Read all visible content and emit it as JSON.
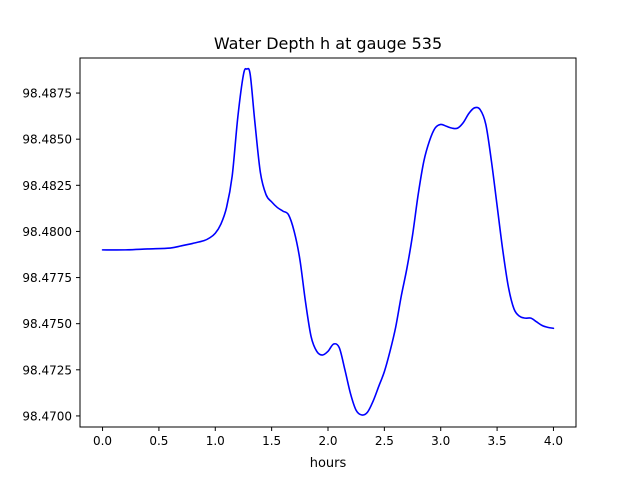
{
  "chart_data": {
    "type": "line",
    "title": "Water Depth h at gauge 535",
    "xlabel": "hours",
    "ylabel": "",
    "xlim": [
      -0.2,
      4.2
    ],
    "ylim": [
      98.4694,
      98.4894
    ],
    "xticks": [
      0.0,
      0.5,
      1.0,
      1.5,
      2.0,
      2.5,
      3.0,
      3.5,
      4.0
    ],
    "xtick_labels": [
      "0.0",
      "0.5",
      "1.0",
      "1.5",
      "2.0",
      "2.5",
      "3.0",
      "3.5",
      "4.0"
    ],
    "yticks": [
      98.47,
      98.4725,
      98.475,
      98.4775,
      98.48,
      98.4825,
      98.485,
      98.4875
    ],
    "ytick_labels": [
      "98.4700",
      "98.4725",
      "98.4750",
      "98.4775",
      "98.4800",
      "98.4825",
      "98.4850",
      "98.4875"
    ],
    "grid": false,
    "series": [
      {
        "color": "#0000ff",
        "x": [
          0.0,
          0.2,
          0.4,
          0.6,
          0.7,
          0.8,
          0.9,
          0.95,
          1.0,
          1.05,
          1.1,
          1.15,
          1.2,
          1.25,
          1.28,
          1.31,
          1.35,
          1.4,
          1.45,
          1.5,
          1.55,
          1.6,
          1.65,
          1.7,
          1.75,
          1.8,
          1.85,
          1.9,
          1.95,
          2.0,
          2.05,
          2.1,
          2.15,
          2.2,
          2.25,
          2.3,
          2.35,
          2.4,
          2.45,
          2.5,
          2.55,
          2.6,
          2.65,
          2.7,
          2.75,
          2.8,
          2.85,
          2.9,
          2.95,
          3.0,
          3.05,
          3.1,
          3.15,
          3.2,
          3.25,
          3.3,
          3.35,
          3.4,
          3.45,
          3.5,
          3.55,
          3.6,
          3.65,
          3.7,
          3.75,
          3.8,
          3.85,
          3.9,
          3.95,
          4.0
        ],
        "y": [
          98.479,
          98.479,
          98.47905,
          98.4791,
          98.47922,
          98.47935,
          98.4795,
          98.47965,
          98.4799,
          98.4804,
          98.4813,
          98.483,
          98.4862,
          98.4885,
          98.4888,
          98.4885,
          98.486,
          98.4832,
          98.482,
          98.4816,
          98.4813,
          98.4811,
          98.4809,
          98.48,
          98.4785,
          98.4762,
          98.4743,
          98.4735,
          98.4733,
          98.4735,
          98.4739,
          98.4737,
          98.4725,
          98.4712,
          98.4703,
          98.47005,
          98.4702,
          98.4708,
          98.4716,
          98.4724,
          98.4735,
          98.4748,
          98.4765,
          98.478,
          98.4798,
          98.482,
          98.4838,
          98.4849,
          98.4856,
          98.4858,
          98.4857,
          98.4856,
          98.4856,
          98.4859,
          98.4864,
          98.4867,
          98.4866,
          98.4858,
          98.4838,
          98.4814,
          98.479,
          98.477,
          98.4758,
          98.4754,
          98.4753,
          98.4753,
          98.4751,
          98.4749,
          98.4748,
          98.47475
        ]
      }
    ]
  }
}
